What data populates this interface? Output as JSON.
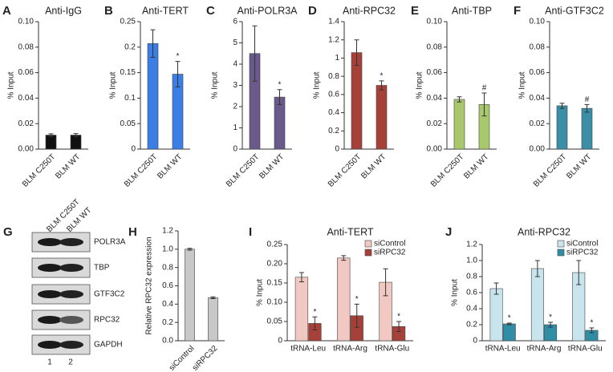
{
  "chart_data": [
    {
      "type": "bar",
      "panel": "A",
      "title": "Anti-IgG",
      "ylabel": "% Input",
      "categories": [
        "BLM C250T",
        "BLM WT"
      ],
      "values": [
        0.011,
        0.011
      ],
      "errors": [
        0.001,
        0.0012
      ],
      "markers": [
        null,
        null
      ],
      "color": "#111111",
      "ylim": [
        0,
        0.1
      ],
      "yticks": [
        {
          "value": 0,
          "label": "0.00"
        },
        {
          "value": 0.02,
          "label": "0.02"
        },
        {
          "value": 0.04,
          "label": "0.04"
        },
        {
          "value": 0.06,
          "label": "0.06"
        },
        {
          "value": 0.08,
          "label": "0.08"
        },
        {
          "value": 0.1,
          "label": "0.10"
        }
      ]
    },
    {
      "type": "bar",
      "panel": "B",
      "title": "Anti-TERT",
      "ylabel": "% Input",
      "categories": [
        "BLM C250T",
        "BLM WT"
      ],
      "values": [
        0.207,
        0.147
      ],
      "errors": [
        0.027,
        0.025
      ],
      "markers": [
        null,
        "*"
      ],
      "color": "#3b7ee6",
      "ylim": [
        0,
        0.25
      ],
      "yticks": [
        0,
        0.05,
        0.1,
        0.15,
        0.2,
        0.25
      ]
    },
    {
      "type": "bar",
      "panel": "C",
      "title": "Anti-POLR3A",
      "ylabel": "% Input",
      "categories": [
        "BLM C250T",
        "BLM WT"
      ],
      "values": [
        4.5,
        2.45
      ],
      "errors": [
        1.3,
        0.35
      ],
      "markers": [
        null,
        "*"
      ],
      "color": "#6a5a8c",
      "ylim": [
        0,
        6
      ],
      "yticks": [
        0,
        1,
        2,
        3,
        4,
        5,
        6
      ]
    },
    {
      "type": "bar",
      "panel": "D",
      "title": "Anti-RPC32",
      "ylabel": "% Input",
      "categories": [
        "BLM C250T",
        "BLM WT"
      ],
      "values": [
        1.06,
        0.7
      ],
      "errors": [
        0.14,
        0.05
      ],
      "markers": [
        null,
        "*"
      ],
      "color": "#a6413a",
      "ylim": [
        0,
        1.4
      ],
      "yticks": [
        0,
        0.2,
        0.4,
        0.6,
        0.8,
        1,
        1.2,
        1.4
      ]
    },
    {
      "type": "bar",
      "panel": "E",
      "title": "Anti-TBP",
      "ylabel": "% Input",
      "categories": [
        "BLM C250T",
        "BLM WT"
      ],
      "values": [
        0.039,
        0.035
      ],
      "errors": [
        0.002,
        0.009
      ],
      "markers": [
        null,
        "#"
      ],
      "color": "#a9c76c",
      "ylim": [
        0,
        0.1
      ],
      "yticks": [
        {
          "value": 0,
          "label": "0.00"
        },
        {
          "value": 0.02,
          "label": "0.02"
        },
        {
          "value": 0.04,
          "label": "0.04"
        },
        {
          "value": 0.06,
          "label": "0.06"
        },
        {
          "value": 0.08,
          "label": "0.08"
        },
        {
          "value": 0.1,
          "label": "0.10"
        }
      ]
    },
    {
      "type": "bar",
      "panel": "F",
      "title": "Anti-GTF3C2",
      "ylabel": "% Input",
      "categories": [
        "BLM C250T",
        "BLM WT"
      ],
      "values": [
        0.034,
        0.032
      ],
      "errors": [
        0.002,
        0.003
      ],
      "markers": [
        null,
        "#"
      ],
      "color": "#3a8ea6",
      "ylim": [
        0,
        0.1
      ],
      "yticks": [
        {
          "value": 0,
          "label": "0.00"
        },
        {
          "value": 0.02,
          "label": "0.02"
        },
        {
          "value": 0.04,
          "label": "0.04"
        },
        {
          "value": 0.06,
          "label": "0.06"
        },
        {
          "value": 0.08,
          "label": "0.08"
        },
        {
          "value": 0.1,
          "label": "0.10"
        }
      ]
    },
    {
      "type": "bar",
      "panel": "H",
      "ylabel": "Relative RPC32 expression",
      "categories": [
        "siControl",
        "siRPC32"
      ],
      "values": [
        1.0,
        0.47
      ],
      "errors": [
        0.01,
        0.01
      ],
      "markers": [
        null,
        null
      ],
      "color": "#c8c8c8",
      "ylim": [
        0,
        1.2
      ],
      "yticks": [
        {
          "value": 0,
          "label": "0.0"
        },
        {
          "value": 0.2,
          "label": "0.2"
        },
        {
          "value": 0.4,
          "label": "0.4"
        },
        {
          "value": 0.6,
          "label": "0.6"
        },
        {
          "value": 0.8,
          "label": "0.8"
        },
        {
          "value": 1,
          "label": "1.0"
        },
        {
          "value": 1.2,
          "label": "1.2"
        }
      ]
    },
    {
      "type": "grouped-bar",
      "panel": "I",
      "title": "Anti-TERT",
      "ylabel": "% Input",
      "categories": [
        "tRNA-Leu",
        "tRNA-Arg",
        "tRNA-Glu"
      ],
      "series": [
        {
          "name": "siControl",
          "color": "#f2c8c3",
          "values": [
            0.165,
            0.215,
            0.152
          ],
          "errors": [
            0.012,
            0.006,
            0.035
          ],
          "markers": [
            null,
            null,
            null
          ]
        },
        {
          "name": "siRPC32",
          "color": "#a6413a",
          "values": [
            0.045,
            0.065,
            0.037
          ],
          "errors": [
            0.017,
            0.03,
            0.013
          ],
          "markers": [
            "*",
            "*",
            "*"
          ]
        }
      ],
      "ylim": [
        0,
        0.25
      ],
      "yticks": [
        0,
        0.05,
        {
          "value": 0.1,
          "label": "0.10"
        },
        0.15,
        {
          "value": 0.2,
          "label": "0.20"
        },
        0.25
      ]
    },
    {
      "type": "grouped-bar",
      "panel": "J",
      "title": "Anti-RPC32",
      "ylabel": "% Input",
      "categories": [
        "tRNA-Leu",
        "tRNA-Arg",
        "tRNA-Glu"
      ],
      "series": [
        {
          "name": "siControl",
          "color": "#c8e5ee",
          "values": [
            0.65,
            0.9,
            0.85
          ],
          "errors": [
            0.07,
            0.1,
            0.15
          ],
          "markers": [
            null,
            null,
            null
          ]
        },
        {
          "name": "siRPC32",
          "color": "#2f8ea6",
          "values": [
            0.21,
            0.2,
            0.13
          ],
          "errors": [
            0.01,
            0.03,
            0.03
          ],
          "markers": [
            "*",
            "*",
            "*"
          ]
        }
      ],
      "ylim": [
        0,
        1.2
      ],
      "yticks": [
        0,
        0.2,
        0.4,
        0.6,
        0.8,
        {
          "value": 1,
          "label": "1.0"
        },
        1.2
      ]
    }
  ],
  "blot": {
    "panel": "G",
    "columns": [
      "BLM C250T",
      "BLM WT"
    ],
    "rows": [
      "POLR3A",
      "TBP",
      "GTF3C2",
      "RPC32",
      "GAPDH"
    ],
    "lanes": [
      1,
      2
    ]
  }
}
